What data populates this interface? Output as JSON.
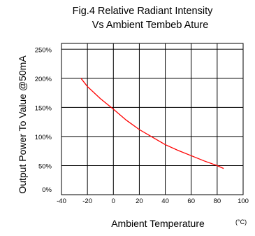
{
  "chart_data": {
    "type": "line",
    "title": [
      "Fig.4 Relative Radiant Intensity",
      "Vs Ambient Tembeb Ature"
    ],
    "xlabel": "Ambient Temperature",
    "xunit": "(°C)",
    "ylabel": "Output Power To Value @50mA",
    "xlim": [
      -40,
      100
    ],
    "ylim": [
      0,
      260
    ],
    "x_ticks": [
      -40,
      -20,
      0,
      20,
      40,
      60,
      80,
      100
    ],
    "x_tick_labels": [
      "-40",
      "-20",
      "0",
      "20",
      "40",
      "60",
      "80",
      "100"
    ],
    "y_ticks": [
      0,
      50,
      100,
      150,
      200,
      250
    ],
    "y_tick_labels": [
      "0%",
      "50%",
      "100%",
      "150%",
      "200%",
      "250%"
    ],
    "grid": true,
    "series": [
      {
        "color": "#ff0000",
        "x": [
          -25,
          -20,
          -10,
          0,
          10,
          20,
          30,
          40,
          50,
          60,
          70,
          80,
          85
        ],
        "y": [
          200,
          186,
          165,
          147,
          128,
          112,
          99,
          86,
          76,
          67,
          58,
          50,
          45
        ]
      }
    ]
  }
}
